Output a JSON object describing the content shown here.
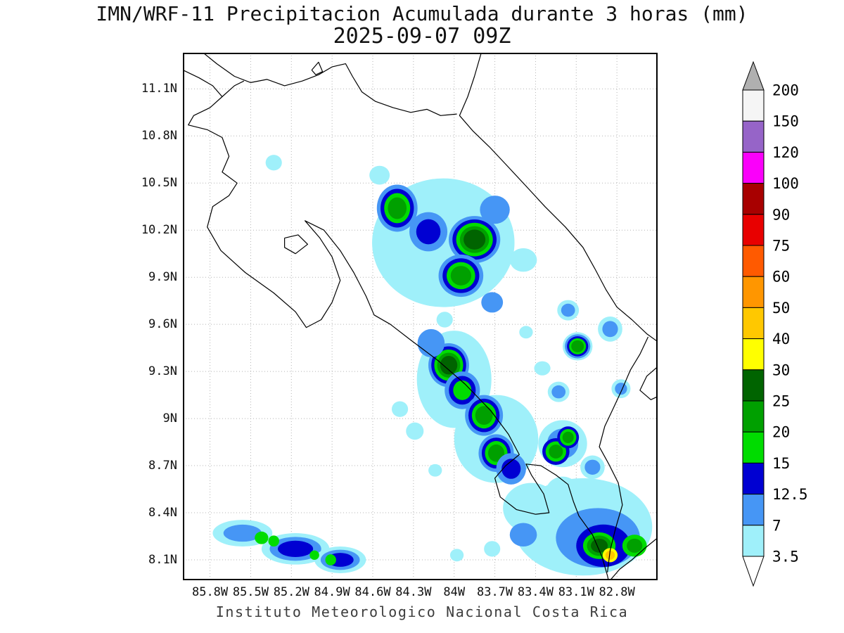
{
  "caption": "Instituto Meteorologico Nacional Costa Rica",
  "chart_data": {
    "type": "heatmap",
    "title": "IMN/WRF-11 Precipitacion Acumulada durante 3 horas (mm)",
    "subtitle": "2025-09-07 09Z",
    "units": "mm",
    "lon_range": [
      -86.0,
      -82.5
    ],
    "lat_range": [
      7.97,
      11.33
    ],
    "grid": true,
    "coastline_color": "#000000",
    "lat_ticks": [
      {
        "label": "11.1N",
        "value": 11.1
      },
      {
        "label": "10.8N",
        "value": 10.8
      },
      {
        "label": "10.5N",
        "value": 10.5
      },
      {
        "label": "10.2N",
        "value": 10.2
      },
      {
        "label": "9.9N",
        "value": 9.9
      },
      {
        "label": "9.6N",
        "value": 9.6
      },
      {
        "label": "9.3N",
        "value": 9.3
      },
      {
        "label": "9N",
        "value": 9.0
      },
      {
        "label": "8.7N",
        "value": 8.7
      },
      {
        "label": "8.4N",
        "value": 8.4
      },
      {
        "label": "8.1N",
        "value": 8.1
      }
    ],
    "lon_ticks": [
      {
        "label": "85.8W",
        "value": -85.8
      },
      {
        "label": "85.5W",
        "value": -85.5
      },
      {
        "label": "85.2W",
        "value": -85.2
      },
      {
        "label": "84.9W",
        "value": -84.9
      },
      {
        "label": "84.6W",
        "value": -84.6
      },
      {
        "label": "84.3W",
        "value": -84.3
      },
      {
        "label": "84W",
        "value": -84.0
      },
      {
        "label": "83.7W",
        "value": -83.7
      },
      {
        "label": "83.4W",
        "value": -83.4
      },
      {
        "label": "83.1W",
        "value": -83.1
      },
      {
        "label": "82.8W",
        "value": -82.8
      }
    ],
    "colorbar": {
      "labels_top_to_bottom": [
        "200",
        "150",
        "120",
        "100",
        "90",
        "75",
        "60",
        "50",
        "40",
        "30",
        "25",
        "20",
        "15",
        "12.5",
        "7",
        "3.5"
      ],
      "cell_colors_top_to_bottom": [
        "#f5f5f5",
        "#9664c8",
        "#fa00fa",
        "#a80000",
        "#e80000",
        "#ff5a00",
        "#ff9600",
        "#ffc800",
        "#ffff00",
        "#006400",
        "#00a000",
        "#00dc00",
        "#0000d2",
        "#4696f5",
        "#9ff0fa"
      ],
      "arrow_top_color": "#b0b0b0",
      "arrow_bottom_color": "#ffffff"
    },
    "value_colors": {
      "3.5": "#9ff0fa",
      "7": "#4696f5",
      "12.5": "#0000d2",
      "15": "#00dc00",
      "20": "#00a000",
      "25": "#006400",
      "30": "#ffff00",
      "40": "#ffc800"
    },
    "coastlines": [
      [
        [
          -86.0,
          11.22
        ],
        [
          -85.88,
          11.17
        ],
        [
          -85.78,
          11.12
        ],
        [
          -85.71,
          11.05
        ],
        [
          -85.8,
          10.98
        ],
        [
          -85.92,
          10.93
        ],
        [
          -85.96,
          10.87
        ],
        [
          -85.82,
          10.84
        ],
        [
          -85.71,
          10.79
        ],
        [
          -85.66,
          10.67
        ],
        [
          -85.71,
          10.57
        ],
        [
          -85.6,
          10.5
        ],
        [
          -85.66,
          10.42
        ],
        [
          -85.78,
          10.35
        ],
        [
          -85.82,
          10.22
        ],
        [
          -85.72,
          10.07
        ],
        [
          -85.54,
          9.93
        ],
        [
          -85.33,
          9.8
        ],
        [
          -85.17,
          9.68
        ],
        [
          -85.09,
          9.58
        ],
        [
          -84.98,
          9.63
        ],
        [
          -84.9,
          9.74
        ],
        [
          -84.84,
          9.88
        ],
        [
          -84.9,
          10.03
        ],
        [
          -84.99,
          10.15
        ],
        [
          -85.1,
          10.26
        ],
        [
          -84.96,
          10.2
        ],
        [
          -84.84,
          10.07
        ],
        [
          -84.74,
          9.93
        ],
        [
          -84.65,
          9.78
        ],
        [
          -84.59,
          9.66
        ],
        [
          -84.47,
          9.6
        ],
        [
          -84.32,
          9.5
        ],
        [
          -84.12,
          9.37
        ],
        [
          -83.92,
          9.22
        ],
        [
          -83.73,
          9.05
        ],
        [
          -83.6,
          8.9
        ],
        [
          -83.52,
          8.77
        ],
        [
          -83.62,
          8.7
        ],
        [
          -83.7,
          8.62
        ],
        [
          -83.66,
          8.5
        ],
        [
          -83.54,
          8.42
        ],
        [
          -83.4,
          8.39
        ],
        [
          -83.3,
          8.4
        ],
        [
          -83.34,
          8.52
        ],
        [
          -83.43,
          8.64
        ],
        [
          -83.47,
          8.71
        ],
        [
          -83.36,
          8.7
        ],
        [
          -83.25,
          8.64
        ],
        [
          -83.16,
          8.58
        ],
        [
          -83.12,
          8.47
        ],
        [
          -83.08,
          8.38
        ],
        [
          -82.98,
          8.26
        ],
        [
          -82.91,
          8.12
        ],
        [
          -82.87,
          8.0
        ],
        [
          -82.86,
          7.96
        ]
      ],
      [
        [
          -85.85,
          11.33
        ],
        [
          -85.75,
          11.26
        ],
        [
          -85.62,
          11.18
        ],
        [
          -85.5,
          11.14
        ],
        [
          -85.38,
          11.16
        ],
        [
          -85.25,
          11.12
        ],
        [
          -85.12,
          11.15
        ],
        [
          -85.0,
          11.19
        ],
        [
          -84.9,
          11.24
        ],
        [
          -84.8,
          11.26
        ],
        [
          -84.75,
          11.18
        ],
        [
          -84.68,
          11.08
        ],
        [
          -84.58,
          11.02
        ],
        [
          -84.45,
          10.98
        ],
        [
          -84.32,
          10.95
        ],
        [
          -84.2,
          10.97
        ],
        [
          -84.1,
          10.93
        ],
        [
          -83.98,
          10.94
        ]
      ],
      [
        [
          -83.8,
          11.33
        ],
        [
          -83.85,
          11.18
        ],
        [
          -83.9,
          11.05
        ],
        [
          -83.96,
          10.93
        ],
        [
          -83.86,
          10.83
        ],
        [
          -83.74,
          10.73
        ],
        [
          -83.62,
          10.62
        ],
        [
          -83.48,
          10.49
        ],
        [
          -83.33,
          10.35
        ],
        [
          -83.18,
          10.22
        ],
        [
          -83.05,
          10.09
        ],
        [
          -82.96,
          9.95
        ],
        [
          -82.88,
          9.82
        ],
        [
          -82.8,
          9.71
        ],
        [
          -82.69,
          9.63
        ],
        [
          -82.58,
          9.54
        ],
        [
          -82.5,
          9.49
        ]
      ],
      [
        [
          -82.57,
          9.52
        ],
        [
          -82.63,
          9.41
        ],
        [
          -82.7,
          9.31
        ],
        [
          -82.76,
          9.19
        ],
        [
          -82.83,
          9.06
        ],
        [
          -82.89,
          8.95
        ],
        [
          -82.93,
          8.82
        ],
        [
          -82.86,
          8.71
        ],
        [
          -82.79,
          8.59
        ],
        [
          -82.76,
          8.45
        ],
        [
          -82.81,
          8.3
        ],
        [
          -82.85,
          8.16
        ],
        [
          -82.87,
          8.02
        ]
      ],
      [
        [
          -82.5,
          8.24
        ],
        [
          -82.6,
          8.17
        ],
        [
          -82.69,
          8.1
        ],
        [
          -82.78,
          8.04
        ],
        [
          -82.85,
          7.97
        ]
      ],
      [
        [
          -85.71,
          11.05
        ],
        [
          -85.62,
          11.12
        ],
        [
          -85.55,
          11.15
        ]
      ],
      [
        [
          -85.25,
          10.15
        ],
        [
          -85.15,
          10.17
        ],
        [
          -85.08,
          10.11
        ],
        [
          -85.17,
          10.05
        ],
        [
          -85.25,
          10.09
        ],
        [
          -85.25,
          10.15
        ]
      ],
      [
        [
          -85.05,
          11.22
        ],
        [
          -85.0,
          11.27
        ],
        [
          -84.97,
          11.21
        ],
        [
          -85.02,
          11.19
        ],
        [
          -85.05,
          11.22
        ]
      ],
      [
        [
          -82.5,
          9.33
        ],
        [
          -82.58,
          9.27
        ],
        [
          -82.63,
          9.18
        ],
        [
          -82.55,
          9.12
        ],
        [
          -82.5,
          9.14
        ]
      ]
    ],
    "precip_cells": [
      {
        "lon": -84.08,
        "lat": 10.12,
        "w": 1.05,
        "h": 0.82,
        "levels": [
          3.5
        ]
      },
      {
        "lon": -84.0,
        "lat": 9.25,
        "w": 0.55,
        "h": 0.62,
        "levels": [
          3.5
        ]
      },
      {
        "lon": -83.69,
        "lat": 8.87,
        "w": 0.62,
        "h": 0.56,
        "levels": [
          3.5
        ]
      },
      {
        "lon": -83.05,
        "lat": 8.31,
        "w": 1.02,
        "h": 0.62,
        "levels": [
          3.5
        ]
      },
      {
        "lon": -83.43,
        "lat": 8.43,
        "w": 0.42,
        "h": 0.32,
        "levels": [
          3.5
        ]
      },
      {
        "lon": -85.56,
        "lat": 8.27,
        "w": 0.44,
        "h": 0.17,
        "levels": [
          3.5,
          7
        ]
      },
      {
        "lon": -85.17,
        "lat": 8.17,
        "w": 0.5,
        "h": 0.2,
        "levels": [
          3.5,
          7,
          12.5
        ]
      },
      {
        "lon": -84.84,
        "lat": 8.1,
        "w": 0.38,
        "h": 0.17,
        "levels": [
          3.5,
          7,
          12.5
        ]
      },
      {
        "lon": -84.42,
        "lat": 10.34,
        "w": 0.3,
        "h": 0.3,
        "levels": [
          7,
          12.5,
          15,
          20
        ]
      },
      {
        "lon": -84.19,
        "lat": 10.19,
        "w": 0.28,
        "h": 0.25,
        "levels": [
          7,
          12.5
        ]
      },
      {
        "lon": -83.85,
        "lat": 10.14,
        "w": 0.38,
        "h": 0.3,
        "levels": [
          7,
          12.5,
          15,
          20,
          25
        ]
      },
      {
        "lon": -83.95,
        "lat": 9.91,
        "w": 0.33,
        "h": 0.27,
        "levels": [
          7,
          12.5,
          15,
          20
        ]
      },
      {
        "lon": -83.7,
        "lat": 10.33,
        "w": 0.22,
        "h": 0.18,
        "levels": [
          7
        ]
      },
      {
        "lon": -84.55,
        "lat": 10.55,
        "w": 0.15,
        "h": 0.12,
        "levels": [
          3.5
        ]
      },
      {
        "lon": -83.49,
        "lat": 10.01,
        "w": 0.2,
        "h": 0.15,
        "levels": [
          3.5
        ]
      },
      {
        "lon": -83.72,
        "lat": 9.74,
        "w": 0.16,
        "h": 0.13,
        "levels": [
          7
        ]
      },
      {
        "lon": -85.33,
        "lat": 10.63,
        "w": 0.12,
        "h": 0.1,
        "levels": [
          3.5
        ]
      },
      {
        "lon": -84.07,
        "lat": 9.63,
        "w": 0.12,
        "h": 0.1,
        "levels": [
          3.5
        ]
      },
      {
        "lon": -83.16,
        "lat": 9.69,
        "w": 0.16,
        "h": 0.13,
        "levels": [
          3.5,
          7
        ]
      },
      {
        "lon": -82.85,
        "lat": 9.57,
        "w": 0.18,
        "h": 0.16,
        "levels": [
          3.5,
          7
        ]
      },
      {
        "lon": -83.09,
        "lat": 9.46,
        "w": 0.22,
        "h": 0.18,
        "levels": [
          3.5,
          7,
          12.5,
          15,
          20
        ]
      },
      {
        "lon": -83.23,
        "lat": 9.17,
        "w": 0.16,
        "h": 0.13,
        "levels": [
          3.5,
          7
        ]
      },
      {
        "lon": -82.77,
        "lat": 9.19,
        "w": 0.14,
        "h": 0.12,
        "levels": [
          3.5,
          7
        ]
      },
      {
        "lon": -83.47,
        "lat": 9.55,
        "w": 0.1,
        "h": 0.08,
        "levels": [
          3.5
        ]
      },
      {
        "lon": -83.35,
        "lat": 9.32,
        "w": 0.12,
        "h": 0.09,
        "levels": [
          3.5
        ]
      },
      {
        "lon": -84.04,
        "lat": 9.34,
        "w": 0.3,
        "h": 0.28,
        "levels": [
          7,
          12.5,
          15,
          20,
          25
        ]
      },
      {
        "lon": -83.94,
        "lat": 9.18,
        "w": 0.26,
        "h": 0.24,
        "levels": [
          7,
          12.5,
          15
        ]
      },
      {
        "lon": -83.78,
        "lat": 9.02,
        "w": 0.28,
        "h": 0.26,
        "levels": [
          7,
          12.5,
          15,
          20
        ]
      },
      {
        "lon": -83.69,
        "lat": 8.78,
        "w": 0.26,
        "h": 0.24,
        "levels": [
          7,
          12.5,
          15,
          20
        ]
      },
      {
        "lon": -83.58,
        "lat": 8.68,
        "w": 0.22,
        "h": 0.2,
        "levels": [
          7,
          12.5
        ]
      },
      {
        "lon": -84.17,
        "lat": 9.48,
        "w": 0.2,
        "h": 0.18,
        "levels": [
          7
        ]
      },
      {
        "lon": -84.29,
        "lat": 8.92,
        "w": 0.13,
        "h": 0.11,
        "levels": [
          3.5
        ]
      },
      {
        "lon": -84.4,
        "lat": 9.06,
        "w": 0.12,
        "h": 0.1,
        "levels": [
          3.5
        ]
      },
      {
        "lon": -83.2,
        "lat": 8.84,
        "w": 0.36,
        "h": 0.3,
        "levels": [
          3.5,
          7
        ]
      },
      {
        "lon": -83.25,
        "lat": 8.79,
        "w": 0.2,
        "h": 0.17,
        "levels": [
          12.5,
          15,
          20
        ]
      },
      {
        "lon": -83.16,
        "lat": 8.88,
        "w": 0.16,
        "h": 0.14,
        "levels": [
          12.5,
          15,
          20
        ]
      },
      {
        "lon": -82.98,
        "lat": 8.69,
        "w": 0.18,
        "h": 0.15,
        "levels": [
          3.5,
          7
        ]
      },
      {
        "lon": -85.42,
        "lat": 8.24,
        "w": 0.1,
        "h": 0.08,
        "levels": [
          15
        ]
      },
      {
        "lon": -85.33,
        "lat": 8.22,
        "w": 0.08,
        "h": 0.07,
        "levels": [
          15
        ]
      },
      {
        "lon": -85.03,
        "lat": 8.13,
        "w": 0.07,
        "h": 0.06,
        "levels": [
          15
        ]
      },
      {
        "lon": -84.91,
        "lat": 8.1,
        "w": 0.08,
        "h": 0.07,
        "levels": [
          15
        ]
      },
      {
        "lon": -82.94,
        "lat": 8.24,
        "w": 0.62,
        "h": 0.38,
        "levels": [
          7
        ]
      },
      {
        "lon": -82.9,
        "lat": 8.19,
        "w": 0.4,
        "h": 0.27,
        "levels": [
          12.5
        ]
      },
      {
        "lon": -82.93,
        "lat": 8.19,
        "w": 0.24,
        "h": 0.17,
        "levels": [
          15,
          20,
          25
        ]
      },
      {
        "lon": -82.67,
        "lat": 8.19,
        "w": 0.18,
        "h": 0.14,
        "levels": [
          15,
          20
        ]
      },
      {
        "lon": -82.85,
        "lat": 8.13,
        "w": 0.11,
        "h": 0.09,
        "levels": [
          30,
          40
        ]
      },
      {
        "lon": -83.2,
        "lat": 8.53,
        "w": 0.25,
        "h": 0.2,
        "levels": [
          3.5
        ]
      },
      {
        "lon": -83.49,
        "lat": 8.26,
        "w": 0.2,
        "h": 0.15,
        "levels": [
          7
        ]
      },
      {
        "lon": -83.72,
        "lat": 8.17,
        "w": 0.12,
        "h": 0.1,
        "levels": [
          3.5
        ]
      },
      {
        "lon": -83.98,
        "lat": 8.13,
        "w": 0.1,
        "h": 0.08,
        "levels": [
          3.5
        ]
      },
      {
        "lon": -84.14,
        "lat": 8.67,
        "w": 0.1,
        "h": 0.08,
        "levels": [
          3.5
        ]
      }
    ]
  }
}
